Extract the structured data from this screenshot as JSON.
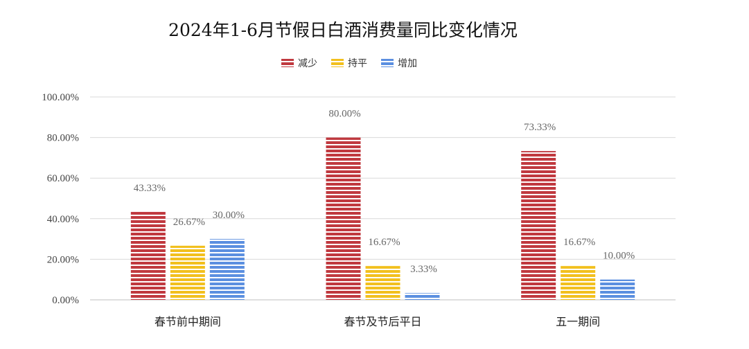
{
  "colors": {
    "减少": "#c0393f",
    "持平": "#f2c01e",
    "增加": "#5b8fe0",
    "grid": "#d9d9d9",
    "axis": "#bfbfbf"
  },
  "chart_data": {
    "type": "bar",
    "title": "2024年1-6月节假日白酒消费量同比变化情况",
    "xlabel": "",
    "ylabel": "",
    "categories": [
      "春节前中期间",
      "春节及节后平日",
      "五一期间"
    ],
    "series": [
      {
        "name": "减少",
        "values": [
          43.33,
          80.0,
          73.33
        ],
        "labels": [
          "43.33%",
          "80.00%",
          "73.33%"
        ]
      },
      {
        "name": "持平",
        "values": [
          26.67,
          16.67,
          16.67
        ],
        "labels": [
          "26.67%",
          "16.67%",
          "16.67%"
        ]
      },
      {
        "name": "增加",
        "values": [
          30.0,
          3.33,
          10.0
        ],
        "labels": [
          "30.00%",
          "3.33%",
          "10.00%"
        ]
      }
    ],
    "ylim": [
      0,
      100
    ],
    "yticks": [
      "0.00%",
      "20.00%",
      "40.00%",
      "60.00%",
      "80.00%",
      "100.00%"
    ],
    "grid": true,
    "legend_position": "top-center"
  }
}
